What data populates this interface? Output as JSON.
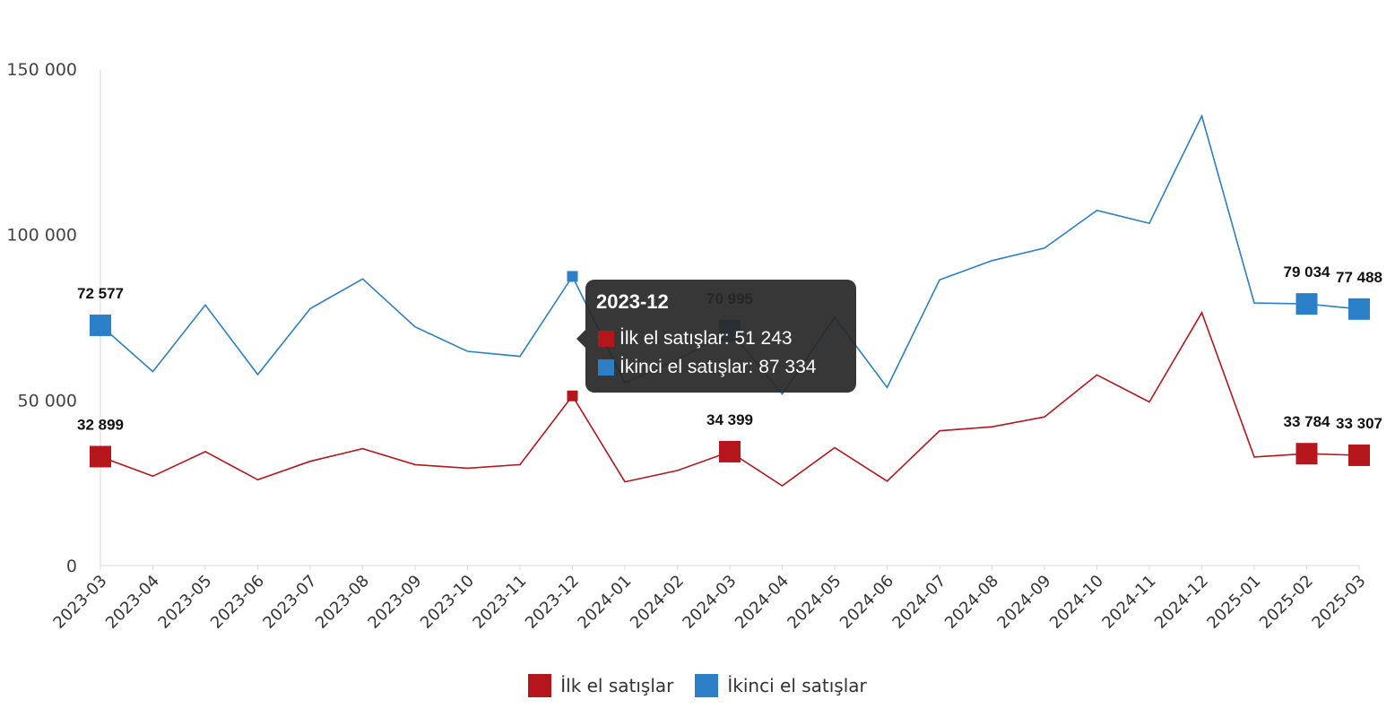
{
  "chart_data": {
    "type": "line",
    "x": [
      "2023-03",
      "2023-04",
      "2023-05",
      "2023-06",
      "2023-07",
      "2023-08",
      "2023-09",
      "2023-10",
      "2023-11",
      "2023-12",
      "2024-01",
      "2024-02",
      "2024-03",
      "2024-04",
      "2024-05",
      "2024-06",
      "2024-07",
      "2024-08",
      "2024-09",
      "2024-10",
      "2024-11",
      "2024-12",
      "2025-01",
      "2025-02",
      "2025-03"
    ],
    "ylim": [
      0,
      150000
    ],
    "yticks": [
      {
        "value": 0,
        "label": "0"
      },
      {
        "value": 50000,
        "label": "50 000"
      },
      {
        "value": 100000,
        "label": "100 000"
      },
      {
        "value": 150000,
        "label": "150 000"
      }
    ],
    "series": [
      {
        "name": "İlk el satışlar",
        "color": "#b5161b",
        "values": [
          32899,
          27000,
          34400,
          25900,
          31500,
          35300,
          30500,
          29400,
          30500,
          51243,
          25300,
          28700,
          34399,
          24100,
          35600,
          25500,
          40700,
          41900,
          44900,
          57600,
          49400,
          76400,
          32800,
          33784,
          33307
        ],
        "labels": [
          {
            "index": 0,
            "text": "32 899"
          },
          {
            "index": 12,
            "text": "34 399"
          },
          {
            "index": 23,
            "text": "33 784"
          },
          {
            "index": 24,
            "text": "33 307"
          }
        ]
      },
      {
        "name": "İkinci el satışlar",
        "color": "#2a7fc7",
        "values": [
          72577,
          58600,
          78700,
          57700,
          77600,
          86600,
          72100,
          64700,
          63200,
          87334,
          55200,
          62100,
          70995,
          51800,
          75000,
          53800,
          86300,
          92100,
          95900,
          107300,
          103400,
          135800,
          79300,
          79034,
          77488
        ],
        "labels": [
          {
            "index": 0,
            "text": "72 577"
          },
          {
            "index": 12,
            "text": "70 995"
          },
          {
            "index": 23,
            "text": "79 034"
          },
          {
            "index": 24,
            "text": "77 488"
          }
        ]
      }
    ],
    "legend": "bottom",
    "grid": false
  },
  "tooltip": {
    "title": "2023-12",
    "rows": [
      {
        "label": "İlk el satışlar: 51 243",
        "color": "#b5161b"
      },
      {
        "label": "İkinci el satışlar: 87 334",
        "color": "#2a7fc7"
      }
    ]
  },
  "legend": {
    "items": [
      {
        "label": "İlk el satışlar",
        "color": "#b5161b"
      },
      {
        "label": "İkinci el satışlar",
        "color": "#2a7fc7"
      }
    ]
  }
}
